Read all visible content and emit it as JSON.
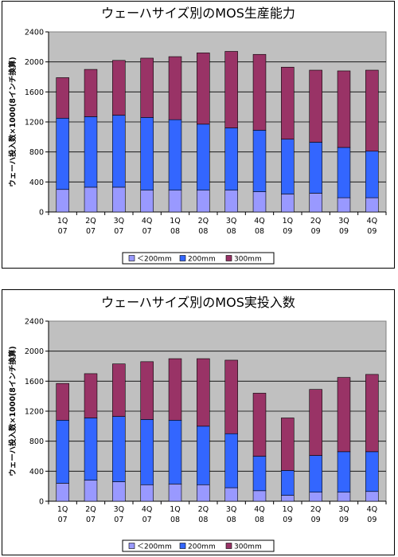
{
  "chart_data": [
    {
      "type": "bar",
      "stacked": true,
      "title": "ウェーハサイズ別のMOS生産能力",
      "ylabel": "ウェーハ投入数×1000(8インチ換算)",
      "ylim": [
        0,
        2400
      ],
      "yticks": [
        "0",
        "400",
        "800",
        "1200",
        "1600",
        "2000",
        "2400"
      ],
      "categories": [
        [
          "1Q",
          "07"
        ],
        [
          "2Q",
          "07"
        ],
        [
          "3Q",
          "07"
        ],
        [
          "4Q",
          "07"
        ],
        [
          "1Q",
          "08"
        ],
        [
          "2Q",
          "08"
        ],
        [
          "3Q",
          "08"
        ],
        [
          "4Q",
          "08"
        ],
        [
          "1Q",
          "09"
        ],
        [
          "2Q",
          "09"
        ],
        [
          "3Q",
          "09"
        ],
        [
          "4Q",
          "09"
        ]
      ],
      "grid": true,
      "legend_position": "bottom",
      "series": [
        {
          "name": "＜200mm",
          "color": "#9999ff",
          "values": [
            300,
            330,
            330,
            290,
            290,
            290,
            290,
            270,
            240,
            250,
            190,
            190
          ]
        },
        {
          "name": "200mm",
          "color": "#3366ff",
          "values": [
            950,
            940,
            960,
            970,
            940,
            880,
            830,
            820,
            730,
            680,
            670,
            620
          ]
        },
        {
          "name": "300mm",
          "color": "#993366",
          "values": [
            540,
            630,
            730,
            790,
            840,
            950,
            1020,
            1010,
            960,
            960,
            1020,
            1080
          ]
        }
      ]
    },
    {
      "type": "bar",
      "stacked": true,
      "title": "ウェーハサイズ別のMOS実投入数",
      "ylabel": "ウェーハ投入数×1000(8インチ換算)",
      "ylim": [
        0,
        2400
      ],
      "yticks": [
        "0",
        "400",
        "800",
        "1200",
        "1600",
        "2000",
        "2400"
      ],
      "categories": [
        [
          "1Q",
          "07"
        ],
        [
          "2Q",
          "07"
        ],
        [
          "3Q",
          "07"
        ],
        [
          "4Q",
          "07"
        ],
        [
          "1Q",
          "08"
        ],
        [
          "2Q",
          "08"
        ],
        [
          "3Q",
          "08"
        ],
        [
          "4Q",
          "08"
        ],
        [
          "1Q",
          "09"
        ],
        [
          "2Q",
          "09"
        ],
        [
          "3Q",
          "09"
        ],
        [
          "4Q",
          "09"
        ]
      ],
      "grid": true,
      "legend_position": "bottom",
      "series": [
        {
          "name": "＜200mm",
          "color": "#9999ff",
          "values": [
            240,
            280,
            260,
            220,
            230,
            220,
            180,
            140,
            80,
            120,
            120,
            130
          ]
        },
        {
          "name": "200mm",
          "color": "#3366ff",
          "values": [
            840,
            830,
            870,
            870,
            850,
            780,
            720,
            460,
            330,
            490,
            540,
            530
          ]
        },
        {
          "name": "300mm",
          "color": "#993366",
          "values": [
            490,
            590,
            700,
            770,
            820,
            900,
            980,
            840,
            700,
            880,
            990,
            1030
          ]
        }
      ]
    }
  ]
}
